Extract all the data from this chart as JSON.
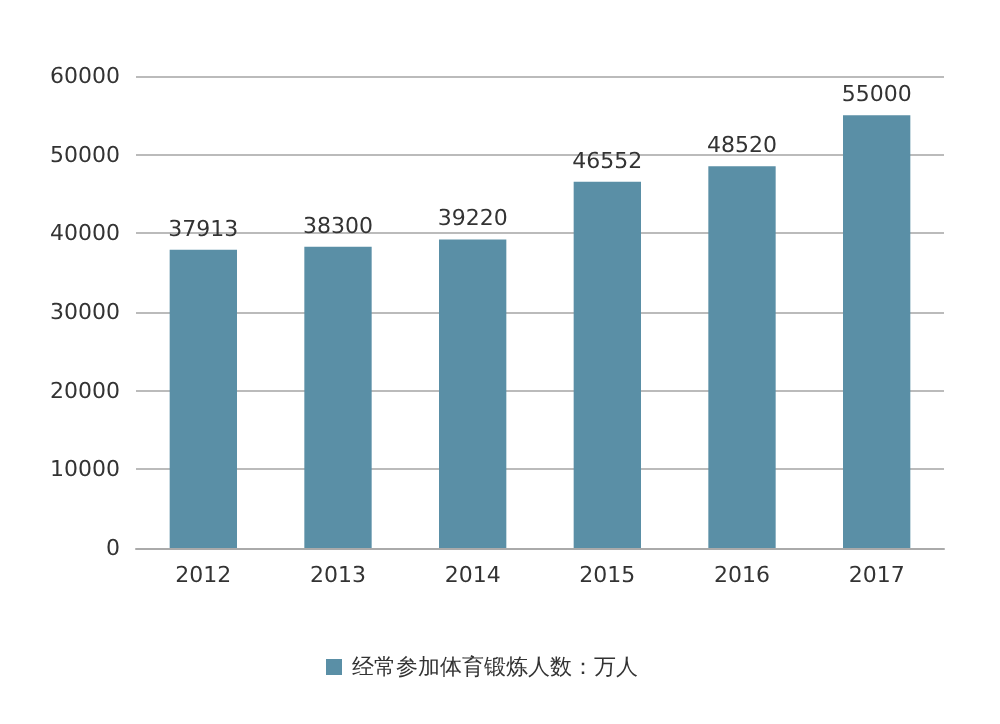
{
  "chart_data": {
    "type": "bar",
    "categories": [
      "2012",
      "2013",
      "2014",
      "2015",
      "2016",
      "2017"
    ],
    "series": [
      {
        "name": "经常参加体育锻炼人数：万人",
        "color": "#5a8fa6",
        "values": [
          37913,
          38300,
          39220,
          46552,
          48520,
          55000
        ]
      }
    ],
    "ylim": [
      0,
      60000
    ],
    "yticks": [
      0,
      10000,
      20000,
      30000,
      40000,
      50000,
      60000
    ],
    "grid": "y",
    "legend": "bottom",
    "data_labels": true
  }
}
